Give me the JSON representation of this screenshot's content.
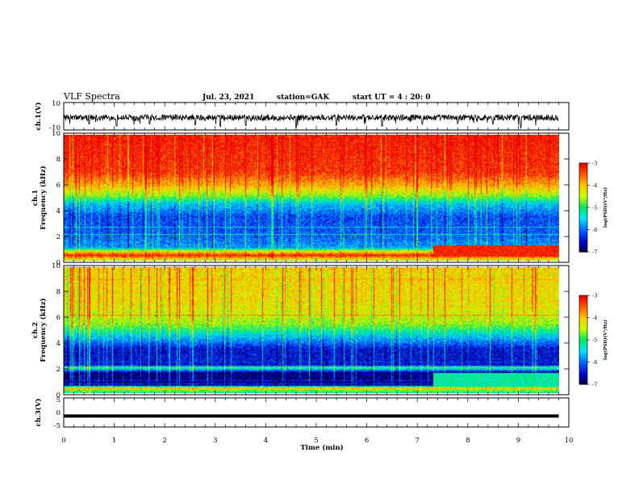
{
  "header": {
    "title": "VLF Spectra",
    "date": "Jul. 23, 2021",
    "station": "station=GAK",
    "start": "start UT = 4 : 20: 0"
  },
  "colorbar": {
    "label": "log(PSD)(V²/Hz)",
    "ticks": [
      "-3",
      "-4",
      "-5",
      "-6",
      "-7"
    ],
    "colors": [
      "#ff0000",
      "#ffa500",
      "#ffff00",
      "#00ff00",
      "#00ffff",
      "#0080ff",
      "#0000ff",
      "#000080"
    ]
  },
  "chart_data": [
    {
      "type": "line",
      "panel": "ch.1(V)",
      "ylabel": "ch.1(V)",
      "ylim": [
        -10,
        10
      ],
      "ytick_labels": [
        "10",
        "-10"
      ],
      "x_range": [
        0,
        9.8
      ],
      "description_values": "noisy waveform centered near -1 V with spikes to about -9 V",
      "baseline": -1,
      "spikes": [
        {
          "x": 0.5,
          "y": -6
        },
        {
          "x": 1.05,
          "y": -8
        },
        {
          "x": 1.7,
          "y": -6
        },
        {
          "x": 2.6,
          "y": -7
        },
        {
          "x": 3.1,
          "y": -8
        },
        {
          "x": 3.6,
          "y": -7
        },
        {
          "x": 4.6,
          "y": -9
        },
        {
          "x": 5.4,
          "y": -7
        },
        {
          "x": 6.3,
          "y": -8
        },
        {
          "x": 7.1,
          "y": -6
        },
        {
          "x": 7.8,
          "y": -6
        },
        {
          "x": 8.5,
          "y": -6
        },
        {
          "x": 9.05,
          "y": -9
        }
      ]
    },
    {
      "type": "heatmap",
      "panel": "ch.1",
      "ylabel": "ch.1 Frequency (kHz)",
      "ylim": [
        0,
        10
      ],
      "ytick_labels": [
        "0",
        "2",
        "4",
        "6",
        "8",
        "10"
      ],
      "x_range": [
        0,
        9.8
      ],
      "value_range": [
        -7,
        -3
      ],
      "profile": [
        {
          "f": 0.0,
          "v": -4.5
        },
        {
          "f": 0.4,
          "v": -3.2
        },
        {
          "f": 0.8,
          "v": -4.6
        },
        {
          "f": 1.0,
          "v": -5.8
        },
        {
          "f": 2.0,
          "v": -6.1
        },
        {
          "f": 3.5,
          "v": -6.2
        },
        {
          "f": 4.5,
          "v": -5.6
        },
        {
          "f": 5.2,
          "v": -4.6
        },
        {
          "f": 6.0,
          "v": -3.9
        },
        {
          "f": 7.0,
          "v": -3.3
        },
        {
          "f": 10.0,
          "v": -3.1
        }
      ],
      "enhancement": {
        "x_start": 7.3,
        "x_end": 9.8,
        "f_low": 0.3,
        "f_high": 1.2,
        "v": -3.2
      }
    },
    {
      "type": "heatmap",
      "panel": "ch.2",
      "ylabel": "ch.2 Frequency (kHz)",
      "ylim": [
        0,
        10
      ],
      "ytick_labels": [
        "0",
        "2",
        "4",
        "6",
        "8",
        "10"
      ],
      "x_range": [
        0,
        9.8
      ],
      "value_range": [
        -7,
        -3
      ],
      "profile": [
        {
          "f": 0.0,
          "v": -5.2
        },
        {
          "f": 0.4,
          "v": -4.2
        },
        {
          "f": 0.6,
          "v": -6.8
        },
        {
          "f": 1.6,
          "v": -6.9
        },
        {
          "f": 2.0,
          "v": -5.0
        },
        {
          "f": 2.2,
          "v": -6.5
        },
        {
          "f": 3.5,
          "v": -6.5
        },
        {
          "f": 4.5,
          "v": -5.6
        },
        {
          "f": 5.5,
          "v": -4.6
        },
        {
          "f": 7.0,
          "v": -4.2
        },
        {
          "f": 10.0,
          "v": -4.1
        }
      ],
      "enhancement": {
        "x_start": 7.3,
        "x_end": 9.8,
        "f_low": 0.2,
        "f_high": 1.6,
        "v": -5.2
      }
    },
    {
      "type": "line",
      "panel": "ch.3(V)",
      "ylabel": "ch.3(V)",
      "ylim": [
        -5,
        5
      ],
      "ytick_labels": [
        "5",
        "0",
        "-5"
      ],
      "x_range": [
        0,
        9.8
      ],
      "values_constant": -1.2
    }
  ],
  "xaxis": {
    "label": "Time (min)",
    "ticks": [
      "0",
      "1",
      "2",
      "3",
      "4",
      "5",
      "6",
      "7",
      "8",
      "9",
      "10"
    ],
    "xlim": [
      0,
      10
    ]
  }
}
